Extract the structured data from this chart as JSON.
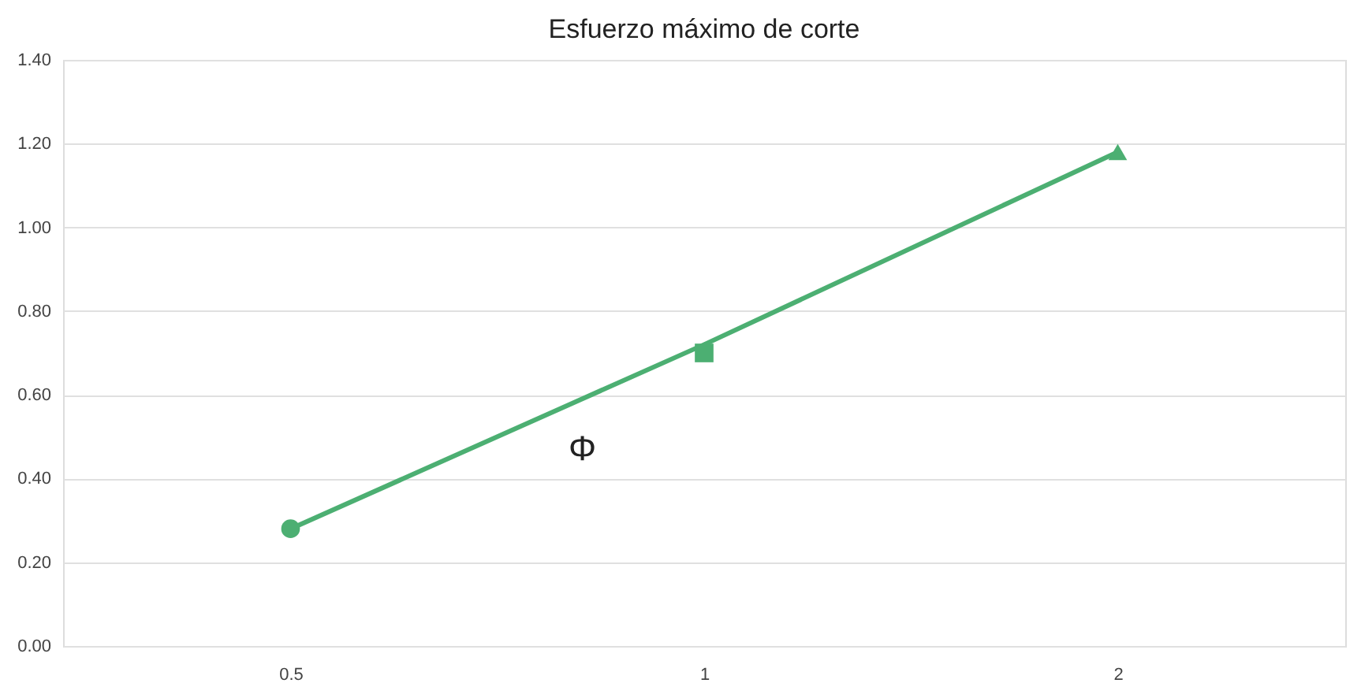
{
  "chart_data": {
    "type": "scatter",
    "title": "Esfuerzo máximo de corte",
    "categories": [
      "0.5",
      "1",
      "2"
    ],
    "ylim": [
      0,
      1.4
    ],
    "yticks": [
      {
        "value": 0,
        "label": "0.00"
      },
      {
        "value": 0.2,
        "label": "0.20"
      },
      {
        "value": 0.4,
        "label": "0.40"
      },
      {
        "value": 0.6,
        "label": "0.60"
      },
      {
        "value": 0.8,
        "label": "0.80"
      },
      {
        "value": 1.0,
        "label": "1.00"
      },
      {
        "value": 1.2,
        "label": "1.20"
      },
      {
        "value": 1.4,
        "label": "1.40"
      }
    ],
    "grid": "y",
    "series": [
      {
        "type": "line",
        "color": "#4caf72",
        "x": [
          "0.5",
          "1",
          "2"
        ],
        "values": [
          0.28,
          0.72,
          1.18
        ],
        "marker": "none",
        "line_style": "solid"
      },
      {
        "color": "#4caf72",
        "x": [
          "0.5"
        ],
        "values": [
          0.28
        ],
        "marker": "circle"
      },
      {
        "color": "#4caf72",
        "x": [
          "1"
        ],
        "values": [
          0.7
        ],
        "marker": "square"
      },
      {
        "color": "#4caf72",
        "x": [
          "2"
        ],
        "values": [
          1.18
        ],
        "marker": "triangle"
      }
    ],
    "annotations": [
      "Φ"
    ]
  }
}
